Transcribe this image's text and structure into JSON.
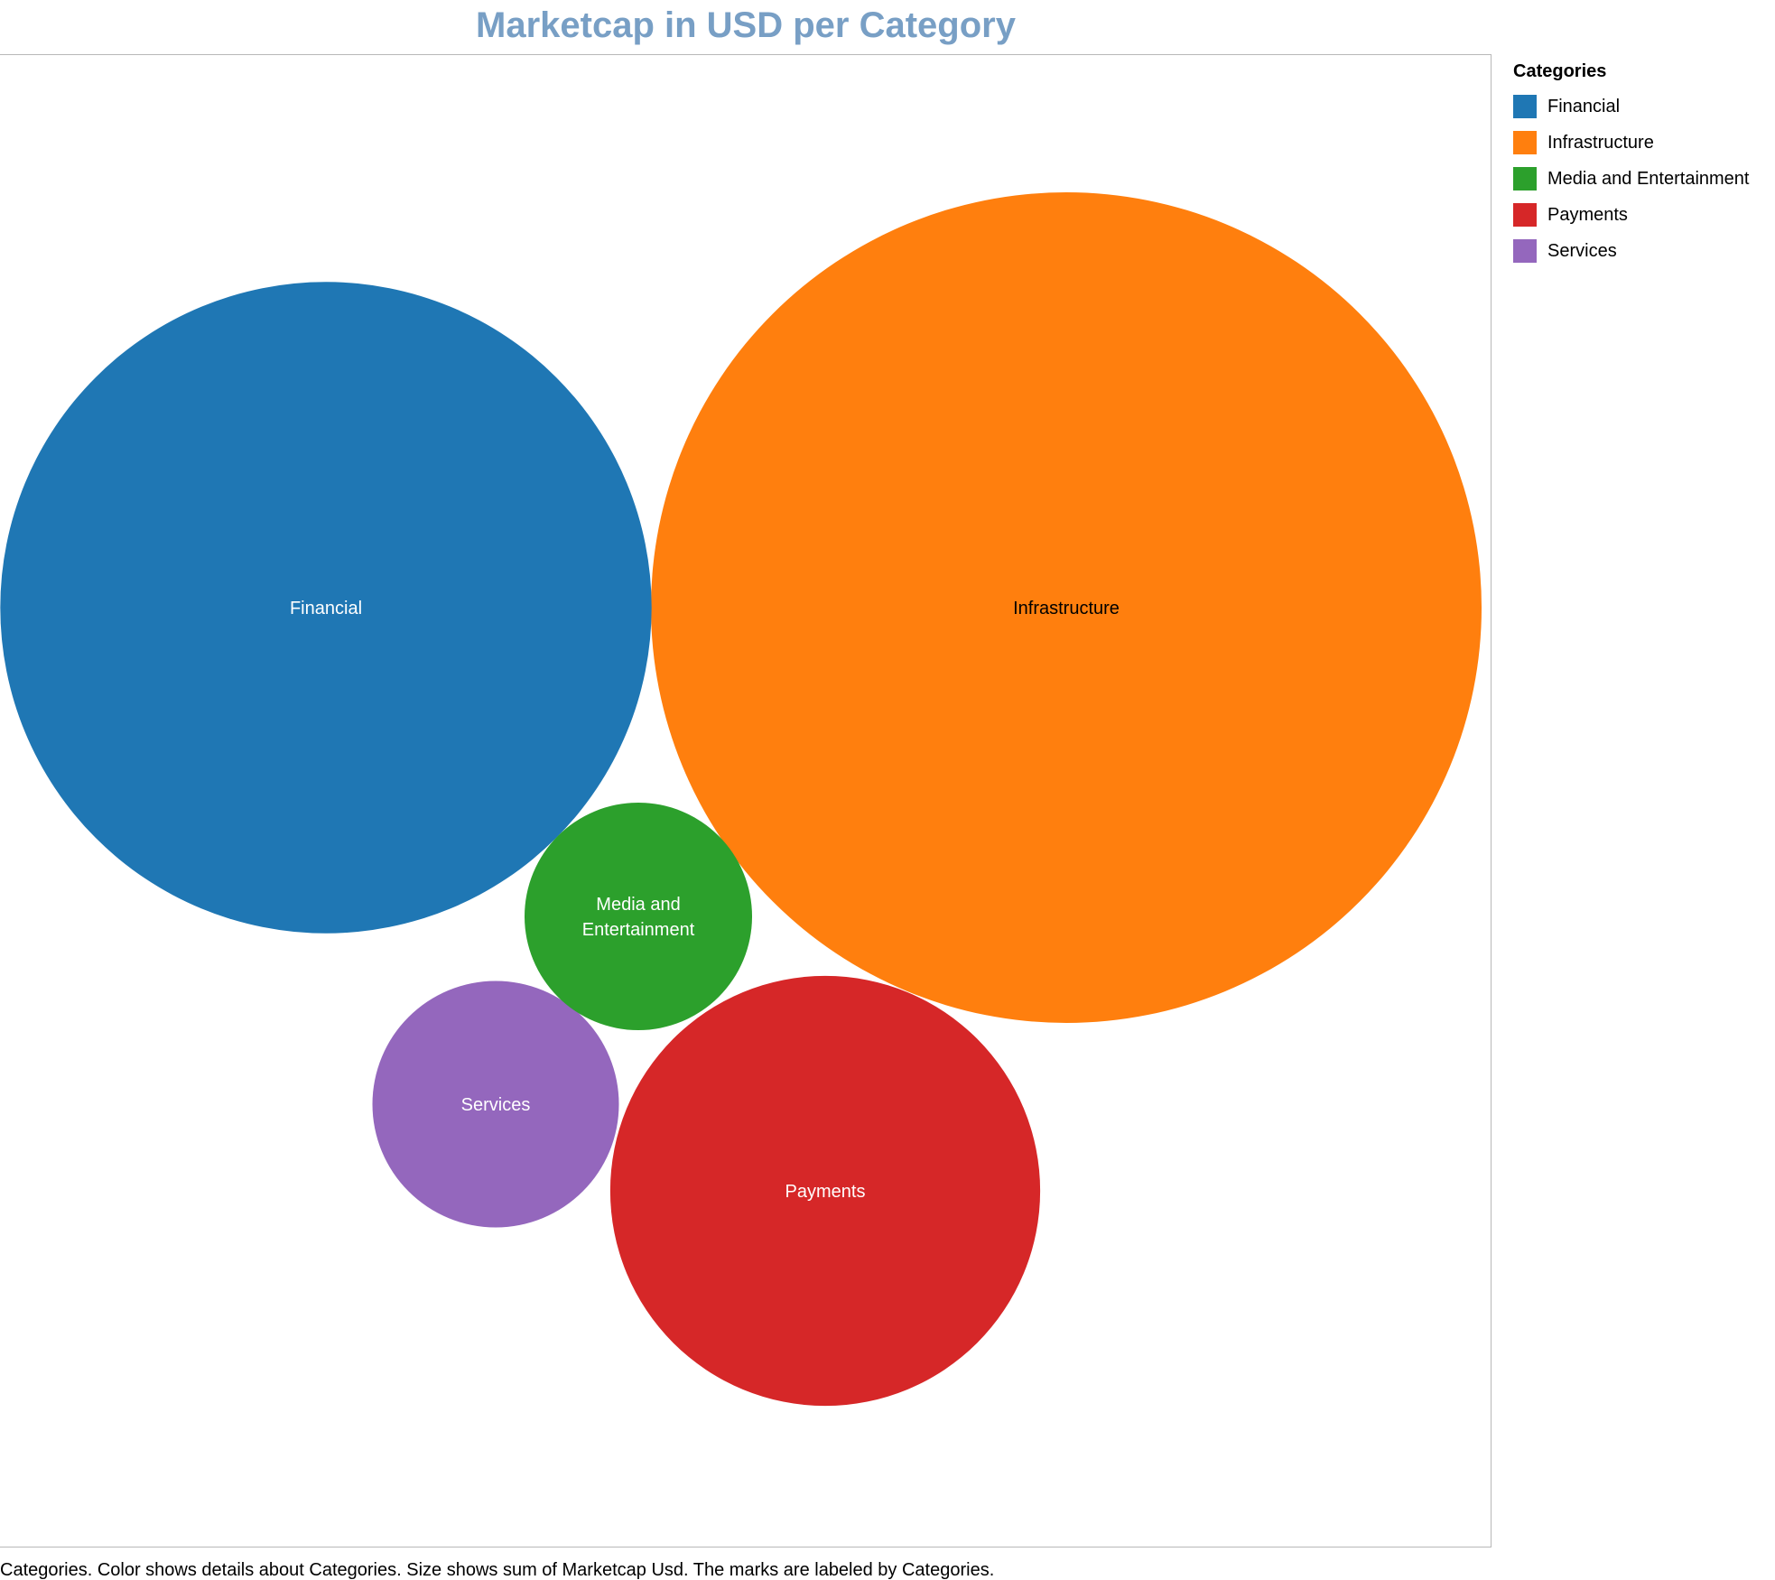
{
  "colors": {
    "title": "#789fc5",
    "frame": "#b8b8b8",
    "label_light": "#ffffff",
    "label_dark": "#000000"
  },
  "legend": {
    "title": "Categories"
  },
  "footnote": "Categories.  Color shows details about Categories.  Size shows sum of Marketcap Usd.  The marks are labeled by Categories.",
  "chart_data": {
    "type": "bubble",
    "title": "Marketcap in USD per Category",
    "size_field": "sum of Marketcap Usd",
    "color_field": "Categories",
    "legend_position": "right",
    "values_unit": "relative area (Infrastructure = 100)",
    "items": [
      {
        "category": "Financial",
        "label_lines": [
          "Financial"
        ],
        "relative_size": 61.5,
        "color": "#1f77b4",
        "label_color": "#ffffff"
      },
      {
        "category": "Infrastructure",
        "label_lines": [
          "Infrastructure"
        ],
        "relative_size": 100,
        "color": "#ff7f0e",
        "label_color": "#000000"
      },
      {
        "category": "Media and Entertainment",
        "label_lines": [
          "Media and",
          "Entertainment"
        ],
        "relative_size": 7.5,
        "color": "#2ca02c",
        "label_color": "#ffffff"
      },
      {
        "category": "Payments",
        "label_lines": [
          "Payments"
        ],
        "relative_size": 26.8,
        "color": "#d62728",
        "label_color": "#ffffff"
      },
      {
        "category": "Services",
        "label_lines": [
          "Services"
        ],
        "relative_size": 8.8,
        "color": "#9467bd",
        "label_color": "#ffffff"
      }
    ]
  }
}
